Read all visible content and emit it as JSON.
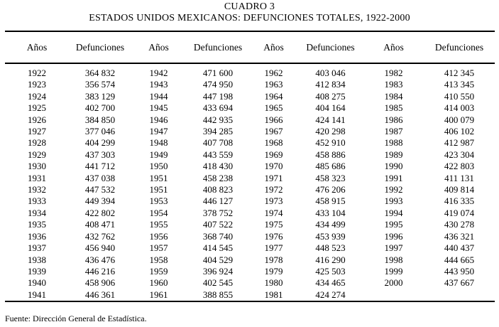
{
  "document": {
    "title": "CUADRO 3",
    "subtitle": "ESTADOS UNIDOS MEXICANOS: DEFUNCIONES TOTALES, 1922-2000",
    "source": "Fuente: Dirección General de Estadística."
  },
  "table": {
    "columns": [
      "Años",
      "Defunciones",
      "Años",
      "Defunciones",
      "Años",
      "Defunciones",
      "Años",
      "Defunciones"
    ],
    "rows": [
      [
        "1922",
        "364 832",
        "1942",
        "471 600",
        "1962",
        "403 046",
        "1982",
        "412 345"
      ],
      [
        "1923",
        "356 574",
        "1943",
        "474 950",
        "1963",
        "412 834",
        "1983",
        "413 345"
      ],
      [
        "1924",
        "383 129",
        "1944",
        "447 198",
        "1964",
        "408 275",
        "1984",
        "410 550"
      ],
      [
        "1925",
        "402 700",
        "1945",
        "433 694",
        "1965",
        "404 164",
        "1985",
        "414 003"
      ],
      [
        "1926",
        "384 850",
        "1946",
        "442 935",
        "1966",
        "424 141",
        "1986",
        "400 079"
      ],
      [
        "1927",
        "377 046",
        "1947",
        "394 285",
        "1967",
        "420 298",
        "1987",
        "406 102"
      ],
      [
        "1928",
        "404 299",
        "1948",
        "407 708",
        "1968",
        "452 910",
        "1988",
        "412 987"
      ],
      [
        "1929",
        "437 303",
        "1949",
        "443 559",
        "1969",
        "458 886",
        "1989",
        "423 304"
      ],
      [
        "1930",
        "441 712",
        "1950",
        "418 430",
        "1970",
        "485 686",
        "1990",
        "422 803"
      ],
      [
        "1931",
        "437 038",
        "1951",
        "458 238",
        "1971",
        "458 323",
        "1991",
        "411 131"
      ],
      [
        "1932",
        "447 532",
        "1951",
        "408 823",
        "1972",
        "476 206",
        "1992",
        "409 814"
      ],
      [
        "1933",
        "449 394",
        "1953",
        "446 127",
        "1973",
        "458 915",
        "1993",
        "416 335"
      ],
      [
        "1934",
        "422 802",
        "1954",
        "378 752",
        "1974",
        "433 104",
        "1994",
        "419 074"
      ],
      [
        "1935",
        "408 471",
        "1955",
        "407 522",
        "1975",
        "434 499",
        "1995",
        "430 278"
      ],
      [
        "1936",
        "432 762",
        "1956",
        "368 740",
        "1976",
        "453 939",
        "1996",
        "436 321"
      ],
      [
        "1937",
        "456 940",
        "1957",
        "414 545",
        "1977",
        "448 523",
        "1997",
        "440 437"
      ],
      [
        "1938",
        "436 476",
        "1958",
        "404 529",
        "1978",
        "416 290",
        "1998",
        "444 665"
      ],
      [
        "1939",
        "446 216",
        "1959",
        "396 924",
        "1979",
        "425 503",
        "1999",
        "443 950"
      ],
      [
        "1940",
        "458 906",
        "1960",
        "402 545",
        "1980",
        "434 465",
        "2000",
        "437 667"
      ],
      [
        "1941",
        "446 361",
        "1961",
        "388 855",
        "1981",
        "424 274",
        "",
        ""
      ]
    ]
  }
}
